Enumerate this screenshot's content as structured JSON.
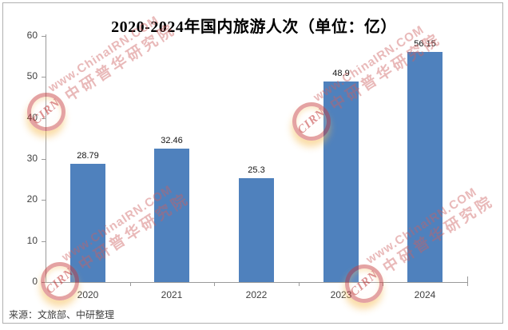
{
  "chart_data": {
    "type": "bar",
    "title": "2020-2024年国内旅游人次（单位：亿）",
    "categories": [
      "2020",
      "2021",
      "2022",
      "2023",
      "2024"
    ],
    "values": [
      28.79,
      32.46,
      25.3,
      48.9,
      56.15
    ],
    "value_labels": [
      "28.79",
      "32.46",
      "25.3",
      "48.9",
      "56.15"
    ],
    "xlabel": "",
    "ylabel": "",
    "ylim": [
      0,
      60
    ],
    "yticks": [
      0,
      10,
      20,
      30,
      40,
      50,
      60
    ],
    "grid": false,
    "legend": false,
    "bar_color": "#4f81bd",
    "axis_color": "#9a9a9a",
    "source": "来源：文旅部、中研整理"
  },
  "watermark": {
    "url": "www.ChinaIRN.COM",
    "name": "中研普华研究院",
    "logo": "CIRN"
  }
}
